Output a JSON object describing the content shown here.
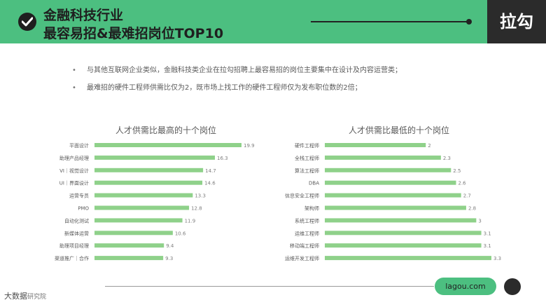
{
  "header": {
    "title_line1": "金融科技行业",
    "title_line2": "最容易招&最难招岗位TOP10",
    "brand": "拉勾",
    "check_icon": "check-circle-icon",
    "bg_color": "#4cbf80",
    "brand_bg": "#2b2b2b"
  },
  "bullets": [
    "与其他互联网企业类似，金融科技类企业在拉勾招聘上最容易招的岗位主要集中在设计及内容运营类；",
    "最难招的硬件工程师供需比仅为2，既市场上找工作的硬件工程师仅为发布职位数的2倍；"
  ],
  "chart_data": [
    {
      "type": "bar",
      "orientation": "horizontal",
      "title": "人才供需比最高的十个岗位",
      "categories": [
        "平面设计",
        "助理产品经理",
        "VI｜视觉设计",
        "UI｜界面设计",
        "运营专员",
        "PMO",
        "自动化测试",
        "新媒体运营",
        "助理项目经理",
        "渠道推广｜合作"
      ],
      "values": [
        19.9,
        16.3,
        14.7,
        14.6,
        13.3,
        12.8,
        11.9,
        10.6,
        9.4,
        9.3
      ],
      "xlim": [
        0,
        19.9
      ],
      "bar_color": "#8fd18a"
    },
    {
      "type": "bar",
      "orientation": "horizontal",
      "title": "人才供需比最低的十个岗位",
      "categories": [
        "硬件工程师",
        "全栈工程师",
        "算法工程师",
        "DBA",
        "信息安全工程师",
        "架构师",
        "系统工程师",
        "运维工程师",
        "移动端工程师",
        "运维开发工程师"
      ],
      "values": [
        "2",
        "2.3",
        "2.5",
        "2.6",
        "2.7",
        "2.8",
        "3",
        "3.1",
        "3.1",
        "3.3"
      ],
      "xlim": [
        0,
        3.3
      ],
      "bar_color": "#8fd18a"
    }
  ],
  "footer": {
    "logo_text": "大数据",
    "logo_sub": "研究院",
    "site": "lagou.com"
  }
}
